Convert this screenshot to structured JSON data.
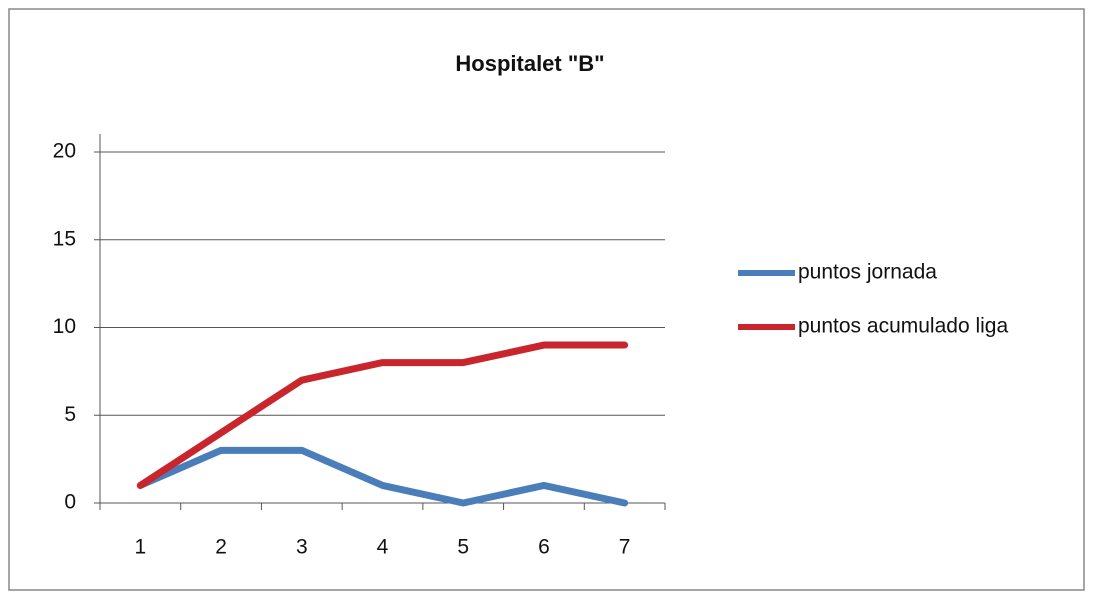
{
  "chart_data": {
    "type": "line",
    "title": "Hospitalet \"B\"",
    "categories": [
      "1",
      "2",
      "3",
      "4",
      "5",
      "6",
      "7"
    ],
    "series": [
      {
        "name": "puntos jornada",
        "color": "#4a7ebb",
        "values": [
          1,
          3,
          3,
          1,
          0,
          1,
          0
        ]
      },
      {
        "name": "puntos acumulado liga",
        "color": "#c8262c",
        "values": [
          1,
          4,
          7,
          8,
          8,
          9,
          9
        ]
      }
    ],
    "ylim": [
      0,
      20
    ],
    "yticks": [
      0,
      5,
      10,
      15,
      20
    ],
    "grid": true,
    "legend": "right"
  }
}
